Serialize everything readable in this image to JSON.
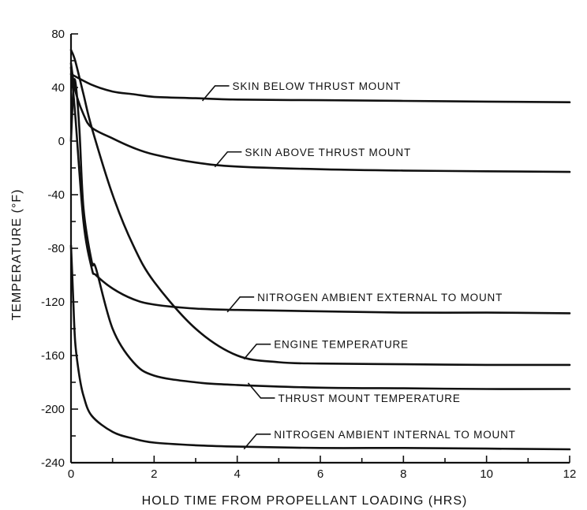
{
  "chart_data": {
    "type": "line",
    "xlabel": "HOLD TIME FROM PROPELLANT LOADING (HRS)",
    "ylabel": "TEMPERATURE (°F)",
    "xlim": [
      0,
      12
    ],
    "ylim": [
      -240,
      80
    ],
    "x_ticks": [
      0,
      2,
      4,
      6,
      8,
      10,
      12
    ],
    "y_ticks": [
      80,
      40,
      0,
      -40,
      -80,
      -120,
      -160,
      -200,
      -240
    ],
    "grid": false,
    "legend": "none",
    "series": [
      {
        "name": "SKIN BELOW THRUST MOUNT",
        "x": [
          0,
          0.5,
          1,
          1.5,
          2,
          3,
          4,
          6,
          8,
          10,
          12
        ],
        "y": [
          50,
          42,
          37,
          35,
          33,
          32,
          31,
          30.5,
          30,
          29.5,
          29
        ],
        "label_at": 3.2
      },
      {
        "name": "SKIN ABOVE THRUST MOUNT",
        "x": [
          0,
          0.1,
          0.3,
          0.5,
          1,
          1.5,
          2,
          3,
          4,
          6,
          8,
          10,
          12
        ],
        "y": [
          58,
          38,
          20,
          10,
          2,
          -5,
          -10,
          -16,
          -19,
          -21,
          -22,
          -22.5,
          -23
        ],
        "label_at": 3.5
      },
      {
        "name": "NITROGEN AMBIENT EXTERNAL TO MOUNT",
        "x": [
          0,
          0.1,
          0.3,
          0.5,
          0.6,
          1,
          1.5,
          2,
          3,
          4,
          6,
          8,
          10,
          12
        ],
        "y": [
          55,
          20,
          -60,
          -95,
          -100,
          -110,
          -118,
          -122,
          -125,
          -126,
          -127,
          -128,
          -128,
          -128.5
        ],
        "label_at": 3.8
      },
      {
        "name": "ENGINE TEMPERATURE",
        "x": [
          0,
          0.1,
          0.3,
          0.5,
          1,
          1.5,
          2,
          3,
          4,
          5,
          6,
          8,
          10,
          12
        ],
        "y": [
          68,
          60,
          35,
          10,
          -40,
          -78,
          -105,
          -140,
          -160,
          -165,
          -166,
          -166.5,
          -167,
          -167
        ],
        "label_at": 4.2
      },
      {
        "name": "THRUST MOUNT TEMPERATURE",
        "x": [
          0,
          0.05,
          0.1,
          0.2,
          0.3,
          0.5,
          0.6,
          1,
          1.5,
          2,
          3,
          4,
          6,
          8,
          10,
          12
        ],
        "y": [
          0,
          35,
          45,
          10,
          -50,
          -90,
          -95,
          -140,
          -165,
          -175,
          -180,
          -182,
          -184,
          -184.5,
          -185,
          -185
        ],
        "label_at": 4.3
      },
      {
        "name": "NITROGEN AMBIENT INTERNAL TO MOUNT",
        "x": [
          0,
          0.05,
          0.1,
          0.2,
          0.3,
          0.5,
          1,
          1.5,
          2,
          3,
          4,
          6,
          8,
          10,
          12
        ],
        "y": [
          -78,
          -115,
          -150,
          -175,
          -190,
          -205,
          -217,
          -222,
          -225,
          -227,
          -228,
          -229,
          -229,
          -229.5,
          -230
        ],
        "label_at": 4.2
      }
    ]
  }
}
